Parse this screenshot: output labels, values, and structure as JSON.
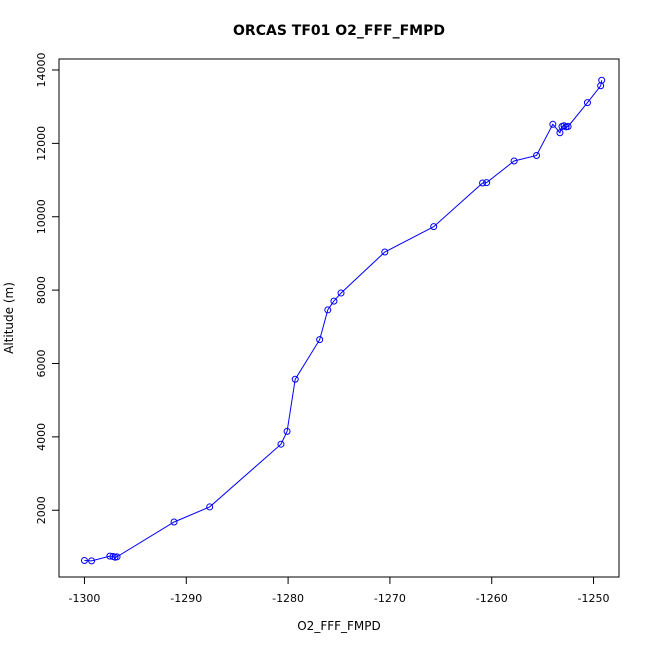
{
  "chart_data": {
    "type": "line",
    "title": "ORCAS TF01 O2_FFF_FMPD",
    "xlabel": "O2_FFF_FMPD",
    "ylabel": "Altitude (m)",
    "xlim": [
      -1302.5,
      -1247.5
    ],
    "ylim": [
      180,
      14300
    ],
    "xticks": [
      -1300,
      -1290,
      -1280,
      -1270,
      -1260,
      -1250
    ],
    "yticks": [
      2000,
      4000,
      6000,
      8000,
      10000,
      12000,
      14000
    ],
    "grid": false,
    "legend": "none",
    "series": [
      {
        "color": "#0000ff",
        "markers": "open-circle",
        "x": [
          -1300,
          -1299.3,
          -1297.5,
          -1297.2,
          -1297.0,
          -1296.8,
          -1291.2,
          -1287.7,
          -1280.7,
          -1280.1,
          -1279.3,
          -1276.9,
          -1276.1,
          -1275.5,
          -1274.8,
          -1270.5,
          -1265.7,
          -1260.9,
          -1260.5,
          -1257.8,
          -1255.6,
          -1254.0,
          -1253.3,
          -1253.1,
          -1252.9,
          -1252.7,
          -1252.5,
          -1250.6,
          -1249.3,
          -1249.2
        ],
        "y": [
          630,
          620,
          750,
          740,
          720,
          730,
          1680,
          2090,
          3800,
          4150,
          5570,
          6650,
          7460,
          7700,
          7920,
          9040,
          9730,
          10920,
          10930,
          11520,
          11670,
          12520,
          12290,
          12460,
          12480,
          12450,
          12460,
          13110,
          13570,
          13720
        ]
      }
    ]
  }
}
